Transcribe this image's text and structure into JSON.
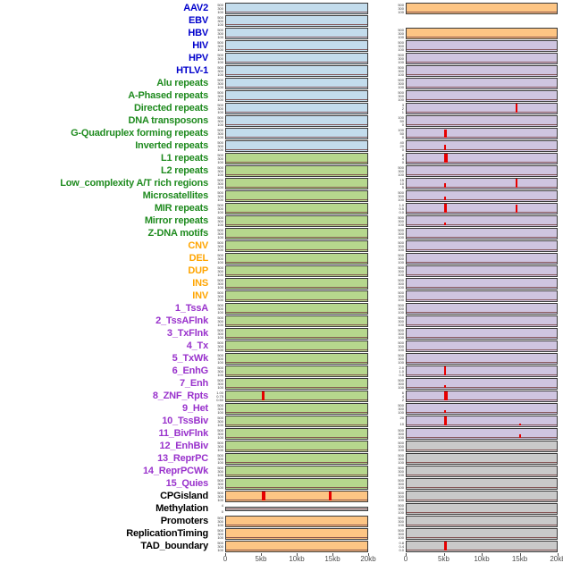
{
  "chart_data": {
    "type": "area",
    "title": "",
    "description": "Multi-track genomic feature profile figure: 44 labeled feature rows, each with two mini signal panels (left and right column) over a 0-20kb window; red spikes mark signal peaks on a near-zero baseline.",
    "x_axis": {
      "ticks": [
        "0",
        "5kb",
        "10kb",
        "15kb",
        "20kb"
      ],
      "range_kb": [
        0,
        20
      ]
    },
    "default_yticks": [
      "500",
      "300",
      "100"
    ],
    "rows": [
      {
        "label": "AAV2",
        "group": "virus",
        "left": {
          "bg": "blue"
        },
        "right": {
          "bg": "orange"
        }
      },
      {
        "label": "EBV",
        "group": "virus",
        "left": {
          "bg": "blue"
        },
        "right": null
      },
      {
        "label": "HBV",
        "group": "virus",
        "left": {
          "bg": "blue"
        },
        "right": {
          "bg": "orange"
        }
      },
      {
        "label": "HIV",
        "group": "virus",
        "left": {
          "bg": "blue"
        },
        "right": {
          "bg": "purple"
        }
      },
      {
        "label": "HPV",
        "group": "virus",
        "left": {
          "bg": "blue"
        },
        "right": {
          "bg": "purple"
        }
      },
      {
        "label": "HTLV-1",
        "group": "virus",
        "left": {
          "bg": "blue"
        },
        "right": {
          "bg": "purple"
        }
      },
      {
        "label": "Alu repeats",
        "group": "repeat",
        "left": {
          "bg": "blue"
        },
        "right": {
          "bg": "purple"
        }
      },
      {
        "label": "A-Phased repeats",
        "group": "repeat",
        "left": {
          "bg": "blue"
        },
        "right": {
          "bg": "purple"
        }
      },
      {
        "label": "Directed repeats",
        "group": "repeat",
        "left": {
          "bg": "blue"
        },
        "right": {
          "bg": "purple",
          "yticks": [
            "3",
            "2",
            "1",
            "0"
          ],
          "spikes": [
            {
              "x_kb": 14.5,
              "h": 1.0,
              "w": 2
            }
          ]
        }
      },
      {
        "label": "DNA transposons",
        "group": "repeat",
        "left": {
          "bg": "blue"
        },
        "right": {
          "bg": "purple",
          "yticks": [
            "100",
            "50",
            "0"
          ]
        }
      },
      {
        "label": "G-Quadruplex forming repeats",
        "group": "repeat",
        "left": {
          "bg": "blue"
        },
        "right": {
          "bg": "purple",
          "yticks": [
            "100",
            "50",
            "0"
          ],
          "spikes": [
            {
              "x_kb": 5,
              "h": 0.8,
              "w": 3
            }
          ]
        }
      },
      {
        "label": "Inverted repeats",
        "group": "repeat",
        "left": {
          "bg": "blue"
        },
        "right": {
          "bg": "purple",
          "yticks": [
            "40",
            "20",
            "0"
          ],
          "spikes": [
            {
              "x_kb": 5,
              "h": 0.55,
              "w": 2
            }
          ]
        }
      },
      {
        "label": "L1 repeats",
        "group": "repeat",
        "left": {
          "bg": "green"
        },
        "right": {
          "bg": "purple",
          "yticks": [
            "8",
            "4",
            "0"
          ],
          "spikes": [
            {
              "x_kb": 5,
              "h": 1.0,
              "w": 4
            }
          ]
        }
      },
      {
        "label": "L2 repeats",
        "group": "repeat",
        "left": {
          "bg": "green"
        },
        "right": {
          "bg": "purple"
        }
      },
      {
        "label": "Low_complexity A/T rich regions",
        "group": "repeat",
        "left": {
          "bg": "green"
        },
        "right": {
          "bg": "purple",
          "yticks": [
            "15",
            "10",
            "5",
            "0"
          ],
          "spikes": [
            {
              "x_kb": 5,
              "h": 0.45,
              "w": 2
            },
            {
              "x_kb": 14.5,
              "h": 1.0,
              "w": 2
            }
          ]
        }
      },
      {
        "label": "Microsatellites",
        "group": "repeat",
        "left": {
          "bg": "green"
        },
        "right": {
          "bg": "purple",
          "spikes": [
            {
              "x_kb": 5,
              "h": 0.35,
              "w": 2
            }
          ]
        }
      },
      {
        "label": "MIR repeats",
        "group": "repeat",
        "left": {
          "bg": "green"
        },
        "right": {
          "bg": "purple",
          "yticks": [
            "1.0",
            "0.5",
            "0.0"
          ],
          "spikes": [
            {
              "x_kb": 5,
              "h": 1.0,
              "w": 3
            },
            {
              "x_kb": 14.5,
              "h": 0.85,
              "w": 2
            }
          ]
        }
      },
      {
        "label": "Mirror repeats",
        "group": "repeat",
        "left": {
          "bg": "green"
        },
        "right": {
          "bg": "purple",
          "spikes": [
            {
              "x_kb": 5,
              "h": 0.3,
              "w": 2
            }
          ]
        }
      },
      {
        "label": "Z-DNA motifs",
        "group": "repeat",
        "left": {
          "bg": "green"
        },
        "right": {
          "bg": "purple"
        }
      },
      {
        "label": "CNV",
        "group": "sv",
        "left": {
          "bg": "green"
        },
        "right": {
          "bg": "purple"
        }
      },
      {
        "label": "DEL",
        "group": "sv",
        "left": {
          "bg": "green"
        },
        "right": {
          "bg": "purple"
        }
      },
      {
        "label": "DUP",
        "group": "sv",
        "left": {
          "bg": "green"
        },
        "right": {
          "bg": "purple"
        }
      },
      {
        "label": "INS",
        "group": "sv",
        "left": {
          "bg": "green"
        },
        "right": {
          "bg": "purple"
        }
      },
      {
        "label": "INV",
        "group": "sv",
        "left": {
          "bg": "green"
        },
        "right": {
          "bg": "purple"
        }
      },
      {
        "label": "1_TssA",
        "group": "chromatin",
        "left": {
          "bg": "green"
        },
        "right": {
          "bg": "purple"
        }
      },
      {
        "label": "2_TssAFlnk",
        "group": "chromatin",
        "left": {
          "bg": "green"
        },
        "right": {
          "bg": "purple"
        }
      },
      {
        "label": "3_TxFlnk",
        "group": "chromatin",
        "left": {
          "bg": "green"
        },
        "right": {
          "bg": "purple"
        }
      },
      {
        "label": "4_Tx",
        "group": "chromatin",
        "left": {
          "bg": "green"
        },
        "right": {
          "bg": "purple"
        }
      },
      {
        "label": "5_TxWk",
        "group": "chromatin",
        "left": {
          "bg": "green"
        },
        "right": {
          "bg": "purple"
        }
      },
      {
        "label": "6_EnhG",
        "group": "chromatin",
        "left": {
          "bg": "green"
        },
        "right": {
          "bg": "purple",
          "yticks": [
            "2.0",
            "1.0",
            "0.0"
          ],
          "spikes": [
            {
              "x_kb": 5,
              "h": 0.9,
              "w": 2
            }
          ]
        }
      },
      {
        "label": "7_Enh",
        "group": "chromatin",
        "left": {
          "bg": "green"
        },
        "right": {
          "bg": "purple",
          "spikes": [
            {
              "x_kb": 5,
              "h": 0.3,
              "w": 2
            }
          ]
        }
      },
      {
        "label": "8_ZNF_Rpts",
        "group": "chromatin",
        "left": {
          "bg": "green",
          "yticks": [
            "1.00",
            "0.75",
            "0.50",
            "0.25"
          ],
          "spikes": [
            {
              "x_kb": 5,
              "h": 1.0,
              "w": 3
            }
          ]
        },
        "right": {
          "bg": "purple",
          "yticks": [
            "6",
            "4",
            "2",
            "0"
          ],
          "spikes": [
            {
              "x_kb": 5,
              "h": 1.0,
              "w": 4
            }
          ]
        }
      },
      {
        "label": "9_Het",
        "group": "chromatin",
        "left": {
          "bg": "green"
        },
        "right": {
          "bg": "purple",
          "spikes": [
            {
              "x_kb": 5,
              "h": 0.3,
              "w": 2
            }
          ]
        }
      },
      {
        "label": "10_TssBiv",
        "group": "chromatin",
        "left": {
          "bg": "green"
        },
        "right": {
          "bg": "purple",
          "yticks": [
            "20",
            "10"
          ],
          "spikes": [
            {
              "x_kb": 5,
              "h": 1.0,
              "w": 3
            },
            {
              "x_kb": 15,
              "h": 0.2,
              "w": 2
            }
          ]
        }
      },
      {
        "label": "11_BivFlnk",
        "group": "chromatin",
        "left": {
          "bg": "green"
        },
        "right": {
          "bg": "purple",
          "spikes": [
            {
              "x_kb": 15,
              "h": 0.35,
              "w": 2
            }
          ]
        }
      },
      {
        "label": "12_EnhBiv",
        "group": "chromatin",
        "left": {
          "bg": "green"
        },
        "right": {
          "bg": "gray"
        }
      },
      {
        "label": "13_ReprPC",
        "group": "chromatin",
        "left": {
          "bg": "green"
        },
        "right": {
          "bg": "gray"
        }
      },
      {
        "label": "14_ReprPCWk",
        "group": "chromatin",
        "left": {
          "bg": "green"
        },
        "right": {
          "bg": "gray"
        }
      },
      {
        "label": "15_Quies",
        "group": "chromatin",
        "left": {
          "bg": "green"
        },
        "right": {
          "bg": "gray"
        }
      },
      {
        "label": "CPGisland",
        "group": "other",
        "left": {
          "bg": "orange",
          "spikes": [
            {
              "x_kb": 5,
              "h": 1.0,
              "w": 4
            },
            {
              "x_kb": 14.5,
              "h": 1.0,
              "w": 3
            }
          ]
        },
        "right": {
          "bg": "gray"
        }
      },
      {
        "label": "Methylation",
        "group": "other",
        "left": {
          "bg": "gray",
          "thin": true,
          "yticks": [
            "4",
            "0"
          ]
        },
        "right": {
          "bg": "gray"
        }
      },
      {
        "label": "Promoters",
        "group": "other",
        "left": {
          "bg": "orange"
        },
        "right": {
          "bg": "gray"
        }
      },
      {
        "label": "ReplicationTiming",
        "group": "other",
        "left": {
          "bg": "orange"
        },
        "right": {
          "bg": "gray"
        }
      },
      {
        "label": "TAD_boundary",
        "group": "other",
        "left": {
          "bg": "orange"
        },
        "right": {
          "bg": "gray",
          "yticks": [
            "0.8",
            "0.4",
            "0.0"
          ],
          "spikes": [
            {
              "x_kb": 5,
              "h": 0.95,
              "w": 3
            }
          ]
        }
      }
    ]
  },
  "colors": {
    "label": {
      "virus": "#0000cc",
      "repeat": "#1f8b1f",
      "sv": "#ffa500",
      "chromatin": "#9932cc",
      "other": "#000000"
    },
    "panel": {
      "blue": "#c3dcec",
      "green": "#b6d78d",
      "orange": "#fdc584",
      "purple": "#cfc5e0",
      "gray": "#c9c9c9"
    },
    "spike": "#e60000",
    "baseline": "#7a4343",
    "axis_text": "#4d4d4d"
  }
}
